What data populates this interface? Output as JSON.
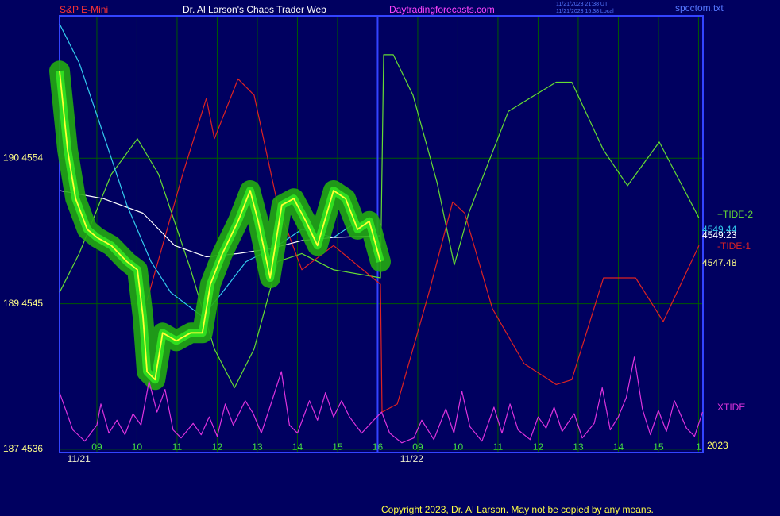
{
  "header": {
    "symbol": "S&P E-Mini",
    "site_title": "Dr. Al Larson's Chaos Trader Web",
    "site_url": "Daytradingforecasts.com",
    "time_ut": "11/21/2023 21:38 UT",
    "time_local": "11/21/2023 15:38 Local",
    "file": "spcctom.txt"
  },
  "footer": {
    "copyright": "Copyright 2023, Dr. Al Larson. May not be copied by any means."
  },
  "chart_data": {
    "type": "line",
    "xlim": [
      -0.93,
      15.11
    ],
    "ylim": [
      4535.8,
      4562.8
    ],
    "yticks": [
      {
        "value": 4554,
        "label": "190  4554"
      },
      {
        "value": 4545,
        "label": "189  4545"
      },
      {
        "value": 4536,
        "label": "187  4536"
      }
    ],
    "xticks": [
      {
        "value": 0,
        "label": "09"
      },
      {
        "value": 1,
        "label": "10"
      },
      {
        "value": 2,
        "label": "11"
      },
      {
        "value": 3,
        "label": "12"
      },
      {
        "value": 4,
        "label": "13"
      },
      {
        "value": 5,
        "label": "14"
      },
      {
        "value": 6,
        "label": "15"
      },
      {
        "value": 7,
        "label": "16"
      },
      {
        "value": 8,
        "label": "09"
      },
      {
        "value": 9,
        "label": "10"
      },
      {
        "value": 10,
        "label": "11"
      },
      {
        "value": 11,
        "label": "12"
      },
      {
        "value": 12,
        "label": "13"
      },
      {
        "value": 13,
        "label": "14"
      },
      {
        "value": 14,
        "label": "15"
      },
      {
        "value": 15,
        "label": "1"
      }
    ],
    "date_labels": [
      {
        "value": -0.45,
        "label": "11/21"
      },
      {
        "value": 7.85,
        "label": "11/22"
      }
    ],
    "session_break": 7,
    "grid": true,
    "series": [
      {
        "name": "+TIDE-2",
        "color": "#66dd33",
        "x": [
          -0.93,
          -0.44,
          0.36,
          1.01,
          1.54,
          2.34,
          2.93,
          3.43,
          3.92,
          4.51,
          5.11,
          5.9,
          7.07,
          7.15,
          7.39,
          7.88,
          8.48,
          8.91,
          9.27,
          10.26,
          11.45,
          11.84,
          12.63,
          13.23,
          14.02,
          15.01
        ],
        "values": [
          4545.7,
          4548.1,
          4553.0,
          4555.2,
          4553.0,
          4547.1,
          4542.2,
          4539.8,
          4542.2,
          4547.6,
          4548.1,
          4547.1,
          4546.6,
          4560.4,
          4560.4,
          4557.9,
          4552.5,
          4547.4,
          4550.6,
          4556.9,
          4558.7,
          4558.7,
          4554.5,
          4552.3,
          4555.0,
          4550.3
        ]
      },
      {
        "name": "-TIDE-1",
        "color": "#dd2222",
        "x": [
          1.25,
          2.14,
          2.73,
          2.93,
          3.52,
          3.92,
          4.51,
          5.11,
          5.9,
          7.07,
          7.11,
          7.49,
          8.28,
          8.87,
          9.17,
          9.86,
          10.65,
          11.45,
          11.84,
          12.63,
          13.43,
          14.12,
          15.01
        ],
        "values": [
          4545.2,
          4553.0,
          4557.7,
          4555.2,
          4558.9,
          4557.9,
          4551.1,
          4547.1,
          4548.6,
          4546.2,
          4538.3,
          4538.8,
          4545.7,
          4551.3,
          4550.6,
          4544.7,
          4541.3,
          4540.0,
          4540.3,
          4546.6,
          4546.6,
          4543.9,
          4548.6
        ]
      },
      {
        "color": "#ffffff",
        "x": [
          -0.93,
          0.16,
          1.15,
          1.94,
          2.73,
          3.52,
          4.32,
          5.11,
          5.9,
          7.07
        ],
        "values": [
          4552.0,
          4551.5,
          4550.6,
          4548.6,
          4547.9,
          4548.1,
          4548.4,
          4548.9,
          4549.1,
          4549.2
        ]
      },
      {
        "color": "#33ccee",
        "x": [
          -0.93,
          -0.44,
          0.16,
          0.75,
          1.35,
          1.84,
          2.63,
          3.13,
          3.72,
          4.51,
          5.11,
          5.9,
          6.5,
          7.07
        ],
        "values": [
          4562.3,
          4559.9,
          4555.5,
          4551.1,
          4547.6,
          4545.7,
          4544.2,
          4545.7,
          4547.6,
          4548.6,
          4549.6,
          4549.1,
          4550.1,
          4549.1
        ]
      },
      {
        "color": "#ffff33",
        "band_color": "#22aa11",
        "x": [
          -0.93,
          -0.73,
          -0.53,
          -0.24,
          0,
          0.36,
          0.75,
          1.01,
          1.15,
          1.25,
          1.45,
          1.64,
          1.98,
          2.34,
          2.63,
          2.83,
          3.13,
          3.52,
          3.82,
          4.02,
          4.32,
          4.61,
          4.91,
          5.21,
          5.5,
          5.9,
          6.2,
          6.5,
          6.79,
          7.07
        ],
        "values": [
          4559.4,
          4554.5,
          4551.5,
          4549.6,
          4549.1,
          4548.6,
          4547.6,
          4547.1,
          4544.2,
          4540.8,
          4540.3,
          4543.2,
          4542.7,
          4543.2,
          4543.2,
          4546.2,
          4548.1,
          4550.1,
          4552.0,
          4550.1,
          4546.6,
          4551.1,
          4551.5,
          4550.1,
          4548.6,
          4552.0,
          4551.5,
          4549.6,
          4550.1,
          4547.6
        ]
      },
      {
        "name": "XTIDE",
        "color": "#dd33dd",
        "x": [
          -0.93,
          -0.6,
          -0.3,
          0.0,
          0.1,
          0.3,
          0.5,
          0.7,
          0.9,
          1.1,
          1.3,
          1.5,
          1.7,
          1.9,
          2.1,
          2.4,
          2.6,
          2.8,
          3.0,
          3.2,
          3.4,
          3.7,
          3.9,
          4.1,
          4.3,
          4.6,
          4.8,
          5.0,
          5.3,
          5.5,
          5.7,
          5.9,
          6.1,
          6.3,
          6.6,
          6.9,
          7.1,
          7.3,
          7.6,
          7.9,
          8.1,
          8.4,
          8.7,
          8.9,
          9.1,
          9.3,
          9.6,
          9.9,
          10.1,
          10.3,
          10.5,
          10.8,
          11.0,
          11.2,
          11.4,
          11.6,
          11.9,
          12.1,
          12.4,
          12.6,
          12.8,
          13.0,
          13.2,
          13.4,
          13.6,
          13.8,
          14.0,
          14.2,
          14.4,
          14.7,
          14.9,
          15.1
        ],
        "values": [
          4539.5,
          4537.2,
          4536.5,
          4537.5,
          4538.8,
          4537.0,
          4537.8,
          4536.9,
          4538.2,
          4537.5,
          4540.2,
          4538.3,
          4539.7,
          4537.2,
          4536.7,
          4537.6,
          4536.9,
          4538.0,
          4536.8,
          4538.8,
          4537.5,
          4539.0,
          4538.2,
          4537.0,
          4538.5,
          4540.8,
          4537.5,
          4537.0,
          4539.0,
          4537.8,
          4539.5,
          4538.0,
          4539.0,
          4538.0,
          4537.0,
          4537.8,
          4538.3,
          4537.0,
          4536.4,
          4536.7,
          4537.8,
          4536.6,
          4538.5,
          4537.0,
          4539.6,
          4537.4,
          4536.5,
          4538.6,
          4537.0,
          4538.8,
          4537.2,
          4536.6,
          4538.0,
          4537.3,
          4538.6,
          4537.1,
          4538.2,
          4536.7,
          4537.6,
          4539.8,
          4537.2,
          4538.0,
          4539.2,
          4541.7,
          4538.5,
          4536.9,
          4538.4,
          4537.1,
          4539.0,
          4537.3,
          4536.8,
          4538.3
        ]
      }
    ],
    "annotations": [
      {
        "text": "4549.44",
        "color": "#33ccee"
      },
      {
        "text": "4549.23",
        "color": "#ffffff"
      },
      {
        "text": "4547.48",
        "color": "#ffff88"
      },
      {
        "text": "2023",
        "color": "#ffff66"
      }
    ]
  }
}
